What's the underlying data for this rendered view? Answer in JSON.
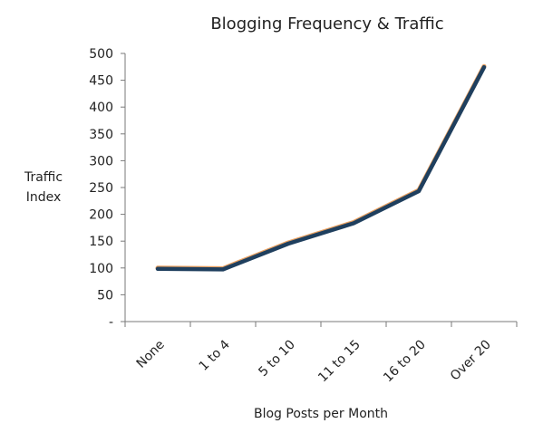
{
  "chart_data": {
    "type": "line",
    "title": "Blogging Frequency & Traffic",
    "xlabel": "Blog Posts per Month",
    "ylabel_lines": [
      "Traffic",
      "Index"
    ],
    "categories": [
      "None",
      "1 to 4",
      "5 to 10",
      "11 to 15",
      "16 to 20",
      "Over 20"
    ],
    "series": [
      {
        "values": [
          100,
          99,
          147,
          185,
          245,
          476
        ],
        "color": "#1f3f5e",
        "underlay_color": "#e8a060"
      }
    ],
    "y_ticks": [
      {
        "value": 0,
        "label": "-"
      },
      {
        "value": 50,
        "label": "50"
      },
      {
        "value": 100,
        "label": "100"
      },
      {
        "value": 150,
        "label": "150"
      },
      {
        "value": 200,
        "label": "200"
      },
      {
        "value": 250,
        "label": "250"
      },
      {
        "value": 300,
        "label": "300"
      },
      {
        "value": 350,
        "label": "350"
      },
      {
        "value": 400,
        "label": "400"
      },
      {
        "value": 450,
        "label": "450"
      },
      {
        "value": 500,
        "label": "500"
      }
    ],
    "ylim": [
      0,
      500
    ],
    "grid": false,
    "legend": "none",
    "x_label_rotation_deg": -45
  }
}
